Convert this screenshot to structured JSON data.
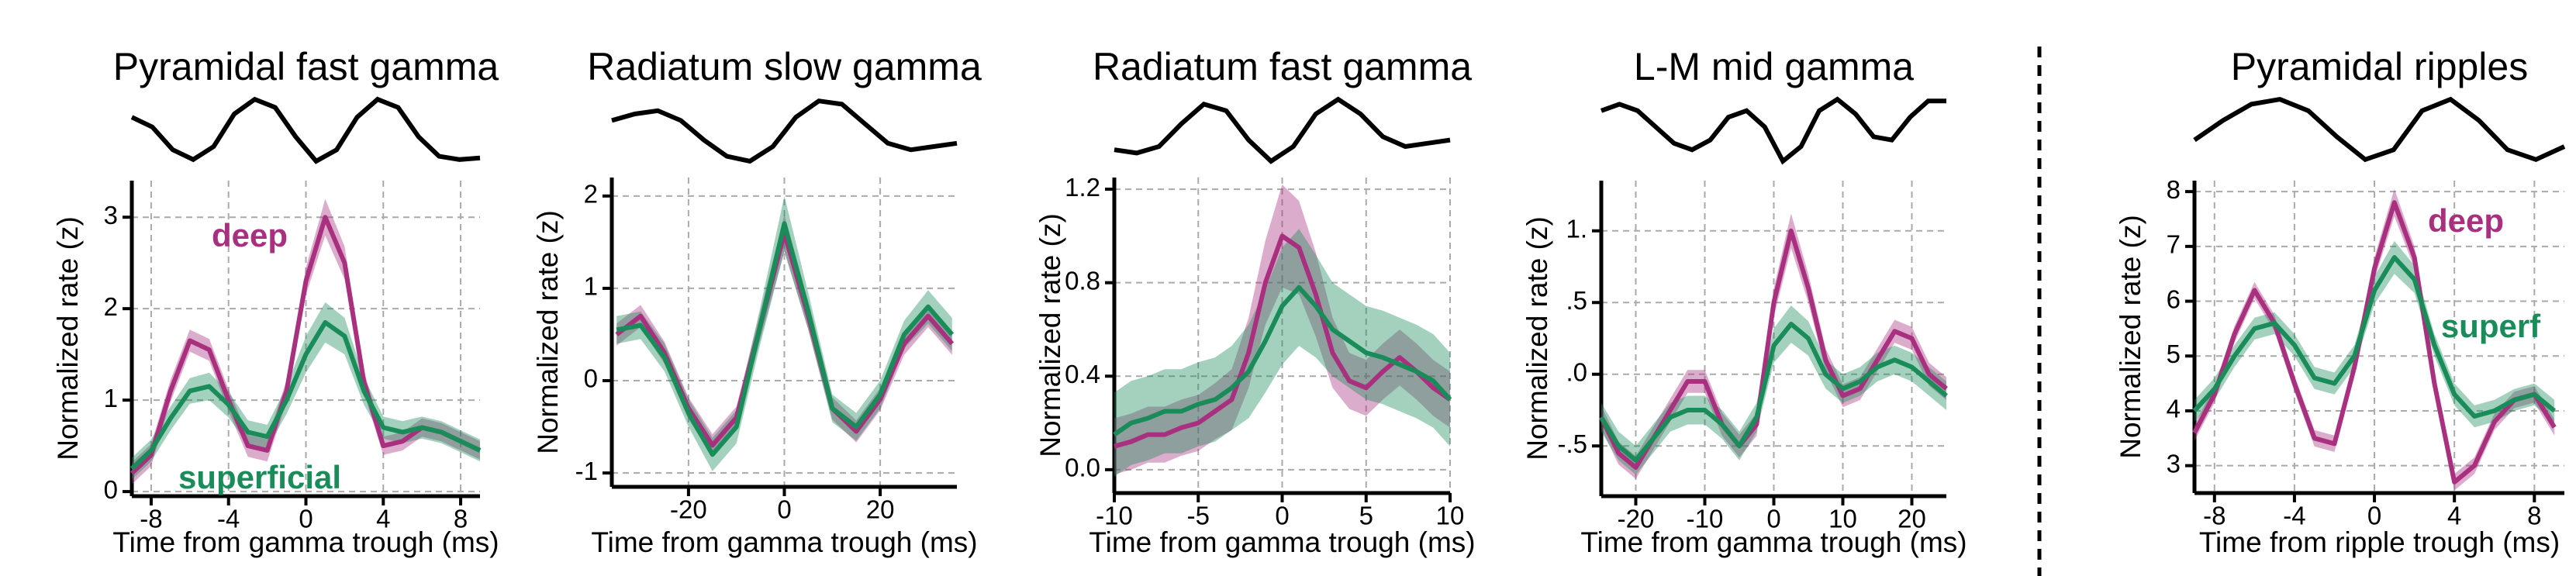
{
  "chart_data": [
    {
      "type": "line",
      "title": "Pyramidal fast gamma",
      "xlabel": "Time from gamma trough (ms)",
      "ylabel": "Normalized rate (z)",
      "xlim": [
        -9,
        9
      ],
      "xticks": [
        -8,
        -4,
        0,
        4,
        8
      ],
      "ylim": [
        -0.05,
        3.4
      ],
      "yticks": [
        0,
        1,
        2,
        3
      ],
      "grid": true,
      "waveform": [
        0.4,
        0.1,
        -0.6,
        -0.9,
        -0.5,
        0.5,
        0.95,
        0.7,
        -0.2,
        -0.95,
        -0.6,
        0.4,
        0.95,
        0.7,
        -0.2,
        -0.8,
        -0.9,
        -0.85
      ],
      "x": [
        -9,
        -8,
        -7,
        -6,
        -5,
        -4,
        -3,
        -2,
        -1,
        0,
        1,
        2,
        3,
        4,
        5,
        6,
        7,
        8,
        9
      ],
      "series": [
        {
          "name": "deep",
          "color": "#a8307f",
          "values": [
            0.2,
            0.4,
            1.1,
            1.65,
            1.55,
            1.0,
            0.5,
            0.45,
            1.1,
            2.3,
            3.0,
            2.5,
            1.2,
            0.5,
            0.55,
            0.7,
            0.65,
            0.55,
            0.45
          ],
          "errors": [
            0.12,
            0.12,
            0.12,
            0.12,
            0.12,
            0.12,
            0.12,
            0.12,
            0.12,
            0.15,
            0.2,
            0.18,
            0.12,
            0.1,
            0.1,
            0.1,
            0.1,
            0.1,
            0.1
          ]
        },
        {
          "name": "superficial",
          "color": "#1a8c5a",
          "values": [
            0.25,
            0.45,
            0.8,
            1.1,
            1.15,
            0.95,
            0.65,
            0.6,
            1.0,
            1.5,
            1.85,
            1.7,
            1.1,
            0.7,
            0.65,
            0.7,
            0.65,
            0.55,
            0.45
          ],
          "errors": [
            0.12,
            0.12,
            0.13,
            0.14,
            0.15,
            0.14,
            0.13,
            0.13,
            0.15,
            0.2,
            0.22,
            0.2,
            0.15,
            0.12,
            0.12,
            0.12,
            0.12,
            0.12,
            0.12
          ]
        }
      ]
    },
    {
      "type": "line",
      "title": "Radiatum slow gamma",
      "xlabel": "Time from gamma trough (ms)",
      "ylabel": "Normalized rate (z)",
      "xlim": [
        -36,
        36
      ],
      "xticks": [
        -20,
        0,
        20
      ],
      "ylim": [
        -1.15,
        2.2
      ],
      "yticks": [
        -1,
        0,
        1,
        2
      ],
      "grid": true,
      "waveform": [
        0.3,
        0.5,
        0.6,
        0.3,
        -0.3,
        -0.8,
        -0.95,
        -0.5,
        0.4,
        0.9,
        0.8,
        0.2,
        -0.4,
        -0.6,
        -0.5,
        -0.4
      ],
      "x": [
        -35,
        -30,
        -25,
        -20,
        -15,
        -10,
        -5,
        0,
        5,
        10,
        15,
        20,
        25,
        30,
        35
      ],
      "series": [
        {
          "name": "deep",
          "color": "#a8307f",
          "values": [
            0.5,
            0.7,
            0.3,
            -0.3,
            -0.7,
            -0.4,
            0.6,
            1.6,
            0.7,
            -0.3,
            -0.55,
            -0.2,
            0.4,
            0.7,
            0.4
          ],
          "errors": [
            0.12,
            0.12,
            0.12,
            0.12,
            0.12,
            0.12,
            0.15,
            0.2,
            0.15,
            0.12,
            0.12,
            0.12,
            0.12,
            0.12,
            0.12
          ]
        },
        {
          "name": "superficial",
          "color": "#1a8c5a",
          "values": [
            0.55,
            0.6,
            0.25,
            -0.35,
            -0.8,
            -0.5,
            0.6,
            1.7,
            0.75,
            -0.3,
            -0.5,
            -0.15,
            0.5,
            0.8,
            0.5
          ],
          "errors": [
            0.15,
            0.15,
            0.15,
            0.15,
            0.18,
            0.18,
            0.2,
            0.3,
            0.2,
            0.15,
            0.15,
            0.15,
            0.15,
            0.18,
            0.18
          ]
        }
      ]
    },
    {
      "type": "line",
      "title": "Radiatum fast gamma",
      "xlabel": "Time from gamma trough (ms)",
      "ylabel": "Normalized rate (z)",
      "xlim": [
        -10,
        10
      ],
      "xticks": [
        -10,
        -5,
        0,
        5,
        10
      ],
      "ylim": [
        -0.1,
        1.25
      ],
      "yticks": [
        {
          "value": 0,
          "label": "0.0"
        },
        0.4,
        0.8,
        1.2
      ],
      "grid": true,
      "waveform": [
        -0.6,
        -0.7,
        -0.5,
        0.2,
        0.8,
        0.6,
        -0.3,
        -0.95,
        -0.5,
        0.5,
        0.95,
        0.5,
        -0.2,
        -0.5,
        -0.4,
        -0.3
      ],
      "x": [
        -10,
        -9,
        -8,
        -7,
        -6,
        -5,
        -4,
        -3,
        -2,
        -1,
        0,
        1,
        2,
        3,
        4,
        5,
        6,
        7,
        8,
        9,
        10
      ],
      "series": [
        {
          "name": "deep",
          "color": "#a8307f",
          "values": [
            0.1,
            0.12,
            0.15,
            0.15,
            0.18,
            0.2,
            0.25,
            0.3,
            0.5,
            0.8,
            1.0,
            0.95,
            0.75,
            0.5,
            0.38,
            0.35,
            0.42,
            0.48,
            0.42,
            0.35,
            0.3
          ],
          "errors": [
            0.12,
            0.12,
            0.12,
            0.12,
            0.12,
            0.12,
            0.12,
            0.13,
            0.15,
            0.18,
            0.22,
            0.2,
            0.18,
            0.15,
            0.12,
            0.12,
            0.12,
            0.12,
            0.12,
            0.12,
            0.12
          ]
        },
        {
          "name": "superficial",
          "color": "#1a8c5a",
          "values": [
            0.15,
            0.2,
            0.22,
            0.25,
            0.25,
            0.28,
            0.3,
            0.35,
            0.42,
            0.55,
            0.7,
            0.78,
            0.7,
            0.6,
            0.55,
            0.5,
            0.48,
            0.45,
            0.42,
            0.38,
            0.3
          ],
          "errors": [
            0.18,
            0.18,
            0.18,
            0.18,
            0.18,
            0.18,
            0.18,
            0.18,
            0.2,
            0.22,
            0.25,
            0.25,
            0.22,
            0.2,
            0.2,
            0.2,
            0.2,
            0.2,
            0.2,
            0.2,
            0.2
          ]
        }
      ]
    },
    {
      "type": "line",
      "title": "L-M mid gamma",
      "xlabel": "Time from gamma trough (ms)",
      "ylabel": "Normalized rate (z)",
      "xlim": [
        -25,
        25
      ],
      "xticks": [
        -20,
        -10,
        0,
        10,
        20
      ],
      "ylim": [
        -0.85,
        1.35
      ],
      "yticks": [
        {
          "value": -0.5,
          "label": "-.5"
        },
        {
          "value": 0,
          "label": ".0"
        },
        {
          "value": 0.5,
          "label": ".5"
        },
        {
          "value": 1,
          "label": "1."
        }
      ],
      "grid": true,
      "waveform": [
        0.6,
        0.8,
        0.6,
        0.1,
        -0.4,
        -0.6,
        -0.3,
        0.4,
        0.6,
        0.1,
        -0.95,
        -0.5,
        0.6,
        0.95,
        0.5,
        -0.2,
        -0.3,
        0.4,
        0.9,
        0.9
      ],
      "x": [
        -25,
        -22.5,
        -20,
        -17.5,
        -15,
        -12.5,
        -10,
        -7.5,
        -5,
        -2.5,
        0,
        2.5,
        5,
        7.5,
        10,
        12.5,
        15,
        17.5,
        20,
        22.5,
        25
      ],
      "series": [
        {
          "name": "deep",
          "color": "#a8307f",
          "values": [
            -0.3,
            -0.55,
            -0.65,
            -0.45,
            -0.25,
            -0.05,
            -0.05,
            -0.35,
            -0.5,
            -0.35,
            0.5,
            1.0,
            0.6,
            0.1,
            -0.15,
            -0.1,
            0.1,
            0.3,
            0.25,
            0.0,
            -0.1
          ],
          "errors": [
            0.08,
            0.08,
            0.08,
            0.08,
            0.08,
            0.08,
            0.08,
            0.08,
            0.08,
            0.08,
            0.1,
            0.12,
            0.1,
            0.08,
            0.08,
            0.08,
            0.08,
            0.08,
            0.08,
            0.08,
            0.08
          ]
        },
        {
          "name": "superficial",
          "color": "#1a8c5a",
          "values": [
            -0.3,
            -0.5,
            -0.6,
            -0.45,
            -0.3,
            -0.25,
            -0.25,
            -0.35,
            -0.5,
            -0.3,
            0.2,
            0.35,
            0.25,
            0.0,
            -0.1,
            -0.05,
            0.05,
            0.1,
            0.05,
            -0.05,
            -0.15
          ],
          "errors": [
            0.1,
            0.1,
            0.1,
            0.1,
            0.1,
            0.1,
            0.1,
            0.1,
            0.1,
            0.1,
            0.12,
            0.13,
            0.12,
            0.1,
            0.1,
            0.1,
            0.1,
            0.1,
            0.1,
            0.1,
            0.1
          ]
        }
      ]
    },
    {
      "type": "line",
      "title": "Pyramidal ripples",
      "xlabel": "Time from ripple trough (ms)",
      "ylabel": "Normalized rate (z)",
      "xlim": [
        -9,
        9.5
      ],
      "xticks": [
        -8,
        -4,
        0,
        4,
        8
      ],
      "ylim": [
        2.5,
        8.2
      ],
      "yticks": [
        3,
        4,
        5,
        6,
        7,
        8
      ],
      "grid": true,
      "waveform": [
        -0.3,
        0.3,
        0.8,
        0.95,
        0.6,
        -0.2,
        -0.9,
        -0.6,
        0.6,
        0.95,
        0.3,
        -0.6,
        -0.9,
        -0.5
      ],
      "x": [
        -9,
        -8,
        -7,
        -6,
        -5,
        -4,
        -3,
        -2,
        -1,
        0,
        1,
        2,
        3,
        4,
        5,
        6,
        7,
        8,
        9
      ],
      "series": [
        {
          "name": "deep",
          "color": "#a8307f",
          "values": [
            3.6,
            4.3,
            5.4,
            6.2,
            5.6,
            4.5,
            3.5,
            3.4,
            4.8,
            6.6,
            7.8,
            6.8,
            4.5,
            2.7,
            3.0,
            3.8,
            4.2,
            4.3,
            3.7
          ],
          "errors": [
            0.15,
            0.15,
            0.15,
            0.15,
            0.15,
            0.15,
            0.15,
            0.15,
            0.15,
            0.2,
            0.25,
            0.2,
            0.15,
            0.15,
            0.15,
            0.15,
            0.15,
            0.15,
            0.15
          ]
        },
        {
          "name": "superf",
          "color": "#1a8c5a",
          "values": [
            4.0,
            4.4,
            5.0,
            5.5,
            5.6,
            5.2,
            4.6,
            4.5,
            5.0,
            6.2,
            6.8,
            6.4,
            5.2,
            4.3,
            3.9,
            4.0,
            4.2,
            4.3,
            4.0
          ],
          "errors": [
            0.2,
            0.2,
            0.2,
            0.2,
            0.2,
            0.2,
            0.2,
            0.2,
            0.2,
            0.25,
            0.3,
            0.25,
            0.2,
            0.2,
            0.2,
            0.2,
            0.2,
            0.2,
            0.2
          ]
        }
      ]
    }
  ]
}
